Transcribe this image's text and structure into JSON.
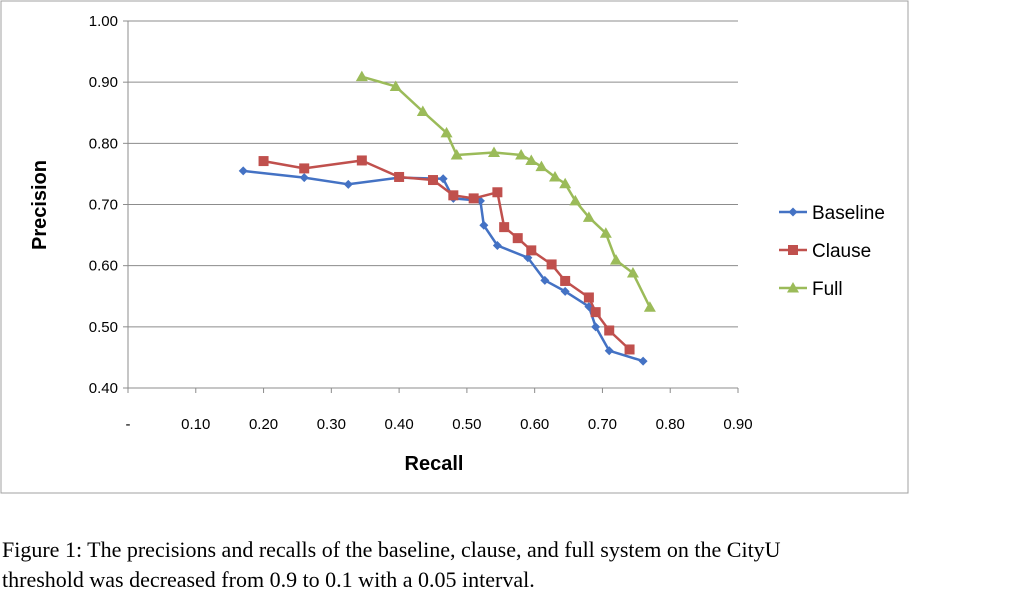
{
  "chart_data": {
    "type": "line",
    "title": "",
    "xlabel": "Recall",
    "ylabel": "Precision",
    "xlim": [
      0,
      0.9
    ],
    "ylim": [
      0.4,
      1.0
    ],
    "x_ticks": [
      "-",
      "0.10",
      "0.20",
      "0.30",
      "0.40",
      "0.50",
      "0.60",
      "0.70",
      "0.80",
      "0.90"
    ],
    "y_ticks": [
      "0.40",
      "0.50",
      "0.60",
      "0.70",
      "0.80",
      "0.90",
      "1.00"
    ],
    "grid": "horizontal",
    "legend_position": "right",
    "series": [
      {
        "name": "Baseline",
        "color": "#4472C4",
        "marker": "diamond",
        "points": [
          [
            0.17,
            0.755
          ],
          [
            0.26,
            0.744
          ],
          [
            0.325,
            0.733
          ],
          [
            0.4,
            0.744
          ],
          [
            0.465,
            0.742
          ],
          [
            0.48,
            0.71
          ],
          [
            0.52,
            0.706
          ],
          [
            0.525,
            0.666
          ],
          [
            0.545,
            0.633
          ],
          [
            0.59,
            0.613
          ],
          [
            0.615,
            0.576
          ],
          [
            0.645,
            0.558
          ],
          [
            0.68,
            0.533
          ],
          [
            0.69,
            0.5
          ],
          [
            0.71,
            0.461
          ],
          [
            0.76,
            0.444
          ]
        ]
      },
      {
        "name": "Clause",
        "color": "#C0504D",
        "marker": "square",
        "points": [
          [
            0.2,
            0.771
          ],
          [
            0.26,
            0.759
          ],
          [
            0.345,
            0.772
          ],
          [
            0.4,
            0.745
          ],
          [
            0.45,
            0.74
          ],
          [
            0.48,
            0.715
          ],
          [
            0.51,
            0.71
          ],
          [
            0.545,
            0.72
          ],
          [
            0.555,
            0.663
          ],
          [
            0.575,
            0.645
          ],
          [
            0.595,
            0.625
          ],
          [
            0.625,
            0.602
          ],
          [
            0.645,
            0.575
          ],
          [
            0.68,
            0.548
          ],
          [
            0.69,
            0.524
          ],
          [
            0.71,
            0.494
          ],
          [
            0.74,
            0.463
          ]
        ]
      },
      {
        "name": "Full",
        "color": "#9BBB59",
        "marker": "triangle",
        "points": [
          [
            0.345,
            0.909
          ],
          [
            0.395,
            0.893
          ],
          [
            0.435,
            0.852
          ],
          [
            0.47,
            0.817
          ],
          [
            0.485,
            0.781
          ],
          [
            0.54,
            0.785
          ],
          [
            0.58,
            0.781
          ],
          [
            0.595,
            0.772
          ],
          [
            0.61,
            0.762
          ],
          [
            0.63,
            0.745
          ],
          [
            0.645,
            0.734
          ],
          [
            0.66,
            0.706
          ],
          [
            0.68,
            0.679
          ],
          [
            0.705,
            0.653
          ],
          [
            0.72,
            0.609
          ],
          [
            0.745,
            0.588
          ],
          [
            0.77,
            0.532
          ]
        ]
      }
    ]
  },
  "caption": {
    "line1": "Figure 1: The precisions and recalls of the baseline, clause, and full system on the CityU",
    "line2": "threshold was decreased from 0.9 to 0.1 with a 0.05 interval."
  }
}
